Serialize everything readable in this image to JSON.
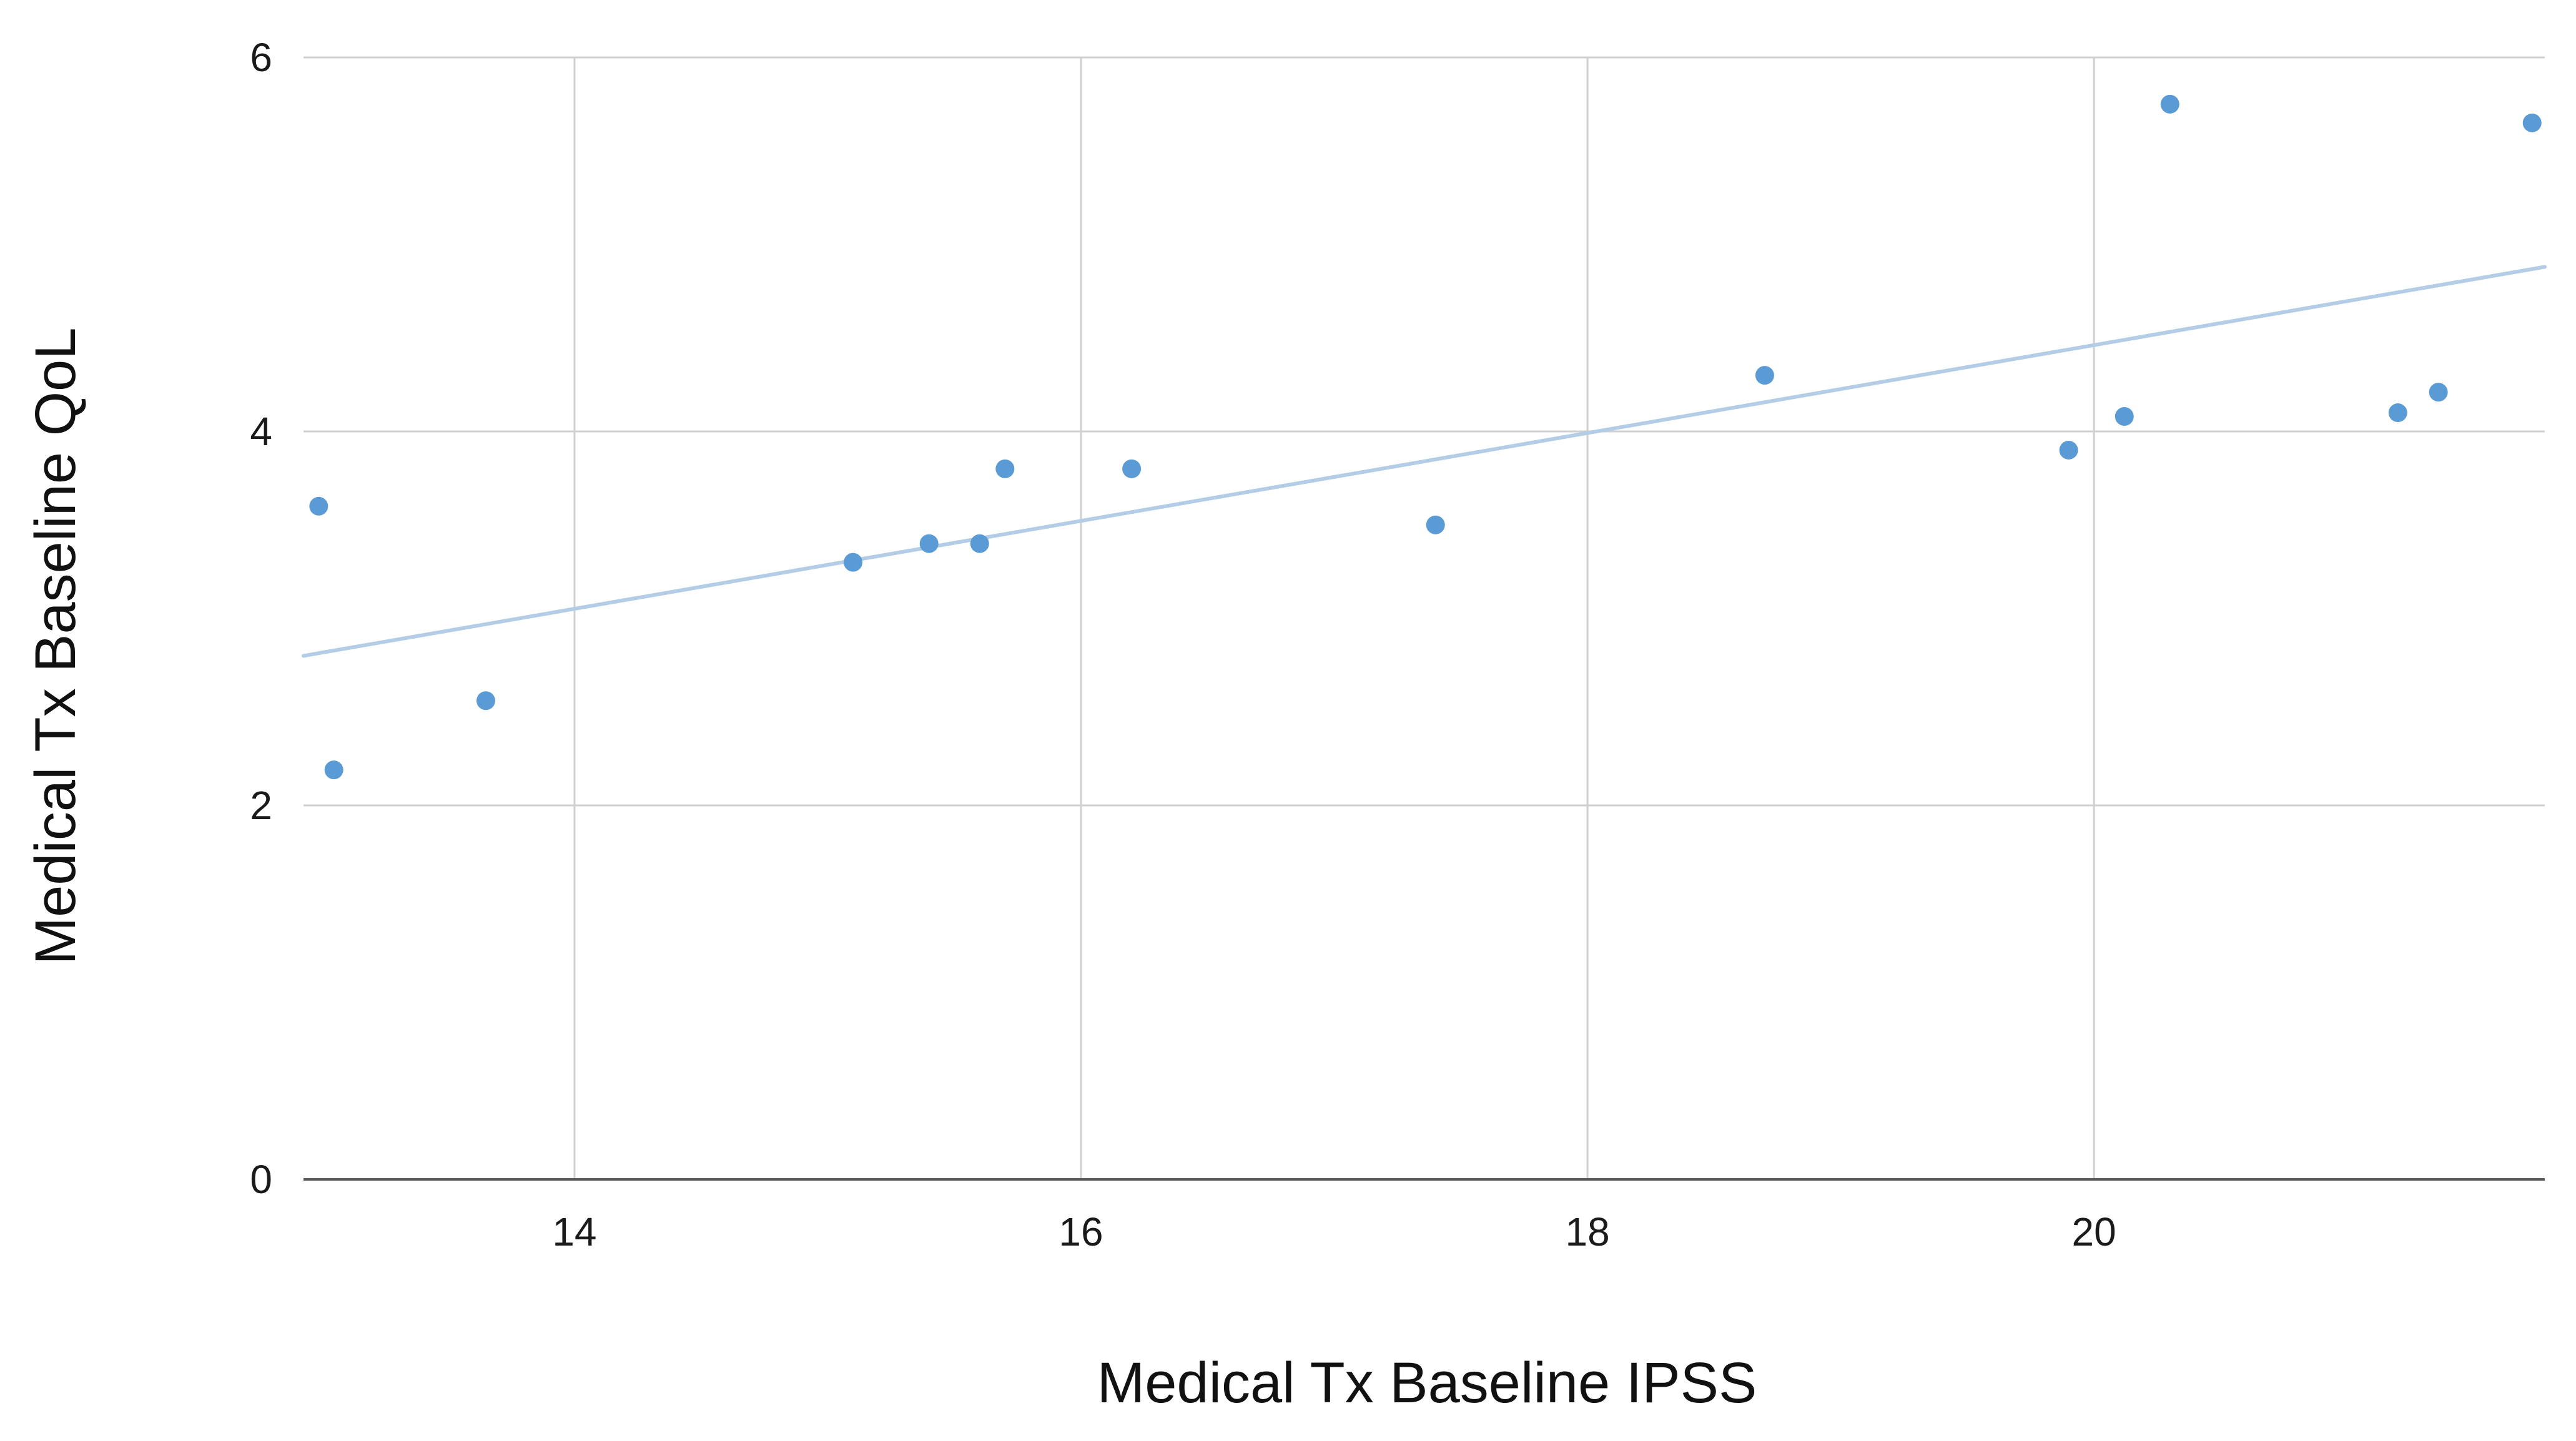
{
  "chart_data": {
    "type": "scatter",
    "title": "",
    "xlabel": "Medical Tx Baseline IPSS",
    "ylabel": "Medical Tx Baseline QoL",
    "xlim": [
      12.93,
      21.78
    ],
    "ylim": [
      0,
      6
    ],
    "x_ticks": [
      14,
      16,
      18,
      20
    ],
    "y_ticks": [
      0,
      2,
      4,
      6
    ],
    "grid": true,
    "legend": "none",
    "series": [
      {
        "color": "#5b9bd5",
        "points": [
          {
            "x": 12.99,
            "y": 3.6
          },
          {
            "x": 13.05,
            "y": 2.19
          },
          {
            "x": 13.65,
            "y": 2.56
          },
          {
            "x": 15.1,
            "y": 3.3
          },
          {
            "x": 15.4,
            "y": 3.4
          },
          {
            "x": 15.6,
            "y": 3.4
          },
          {
            "x": 15.7,
            "y": 3.8
          },
          {
            "x": 16.2,
            "y": 3.8
          },
          {
            "x": 17.4,
            "y": 3.5
          },
          {
            "x": 18.7,
            "y": 4.3
          },
          {
            "x": 19.9,
            "y": 3.9
          },
          {
            "x": 20.12,
            "y": 4.08
          },
          {
            "x": 20.3,
            "y": 5.75
          },
          {
            "x": 21.2,
            "y": 4.1
          },
          {
            "x": 21.36,
            "y": 4.21
          },
          {
            "x": 21.73,
            "y": 5.65
          }
        ]
      }
    ],
    "trendline": {
      "type": "linear",
      "color": "#b4cde6",
      "start": {
        "x": 12.93,
        "y": 2.8
      },
      "end": {
        "x": 21.78,
        "y": 4.88
      }
    }
  }
}
